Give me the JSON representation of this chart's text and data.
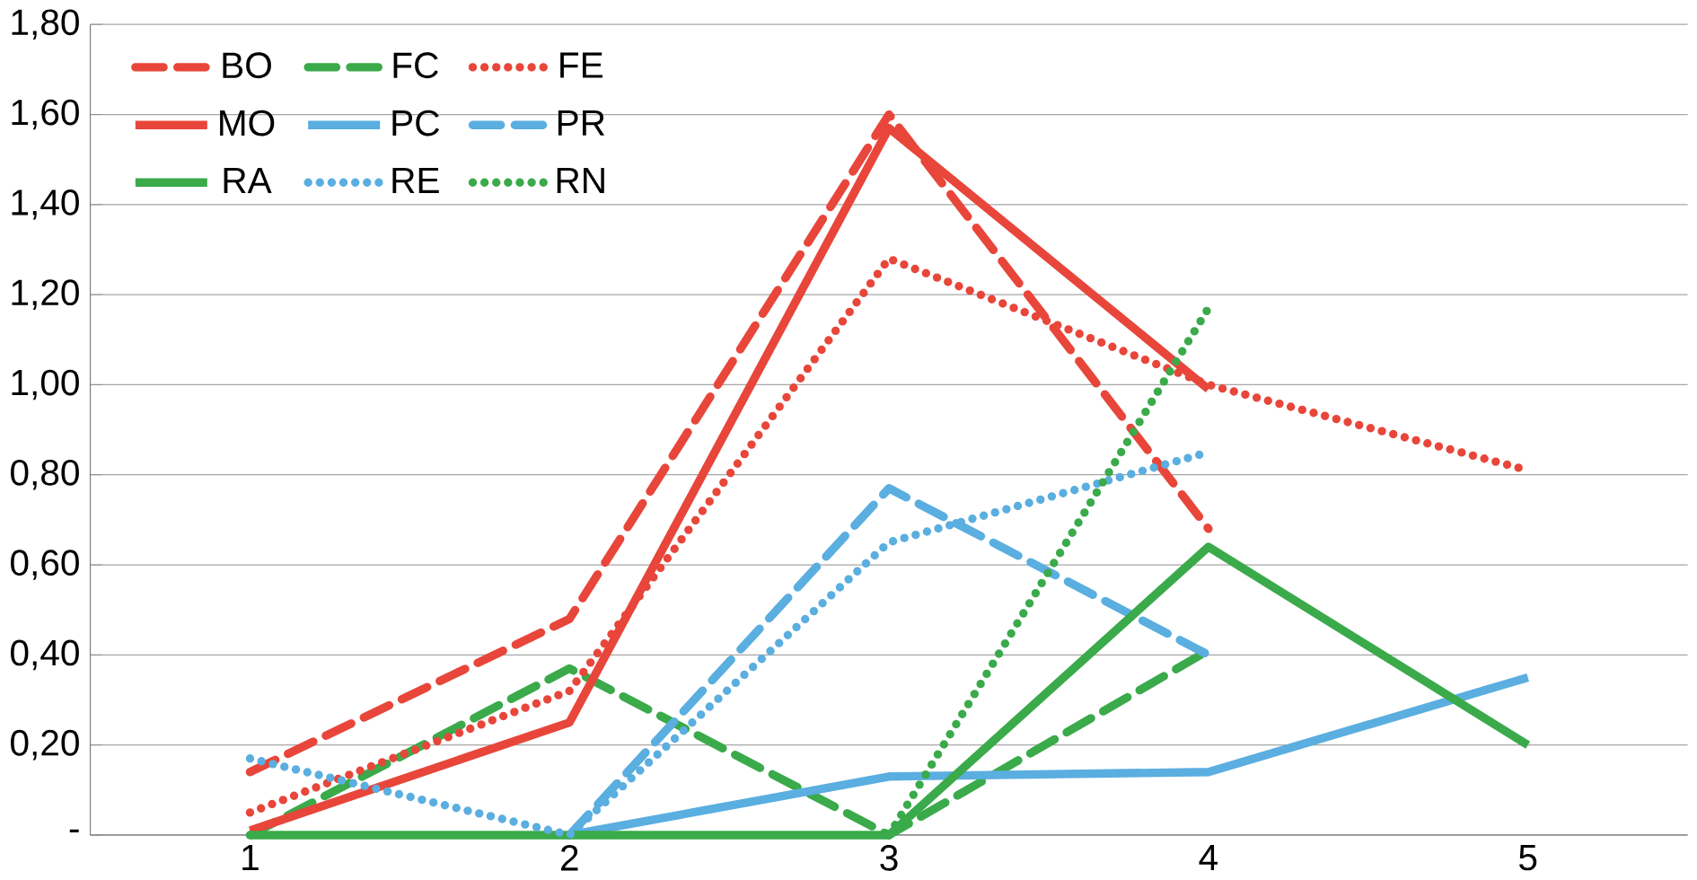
{
  "chart_data": {
    "type": "line",
    "categories": [
      "1",
      "2",
      "3",
      "4",
      "5"
    ],
    "ylim": [
      0,
      1.8
    ],
    "yticks": [
      {
        "value": 0,
        "label": "-"
      },
      {
        "value": 0.2,
        "label": "0,20"
      },
      {
        "value": 0.4,
        "label": "0,40"
      },
      {
        "value": 0.6,
        "label": "0,60"
      },
      {
        "value": 0.8,
        "label": "0,80"
      },
      {
        "value": 1.0,
        "label": "1,00"
      },
      {
        "value": 1.2,
        "label": "1,20"
      },
      {
        "value": 1.4,
        "label": "1,40"
      },
      {
        "value": 1.6,
        "label": "1,60"
      },
      {
        "value": 1.8,
        "label": "1,80"
      }
    ],
    "grid": "y",
    "legend": "top left",
    "marker": "none",
    "series": [
      {
        "name": "BO",
        "color": "#e8463a",
        "line_style": "dashed",
        "values": [
          0.14,
          0.48,
          1.6,
          0.68,
          null
        ]
      },
      {
        "name": "FC",
        "color": "#3aaa4a",
        "line_style": "dashed",
        "values": [
          0.0,
          0.37,
          0.0,
          0.41,
          null
        ]
      },
      {
        "name": "FE",
        "color": "#e8463a",
        "line_style": "dotted",
        "values": [
          0.05,
          0.32,
          1.28,
          1.0,
          0.81
        ]
      },
      {
        "name": "MO",
        "color": "#e8463a",
        "line_style": "solid",
        "values": [
          0.01,
          0.25,
          1.57,
          0.99,
          null
        ]
      },
      {
        "name": "PC",
        "color": "#5aaee0",
        "line_style": "solid",
        "values": [
          null,
          0.0,
          0.13,
          0.14,
          0.35
        ]
      },
      {
        "name": "PR",
        "color": "#5aaee0",
        "line_style": "dashed",
        "values": [
          null,
          0.0,
          0.77,
          0.4,
          null
        ]
      },
      {
        "name": "RA",
        "color": "#3aaa4a",
        "line_style": "solid",
        "values": [
          0.0,
          0.0,
          0.0,
          0.64,
          0.2
        ]
      },
      {
        "name": "RE",
        "color": "#5aaee0",
        "line_style": "dotted",
        "values": [
          0.17,
          0.0,
          0.65,
          0.85,
          null
        ]
      },
      {
        "name": "RN",
        "color": "#3aaa4a",
        "line_style": "dotted",
        "values": [
          null,
          null,
          0.0,
          1.17,
          null
        ]
      }
    ]
  }
}
